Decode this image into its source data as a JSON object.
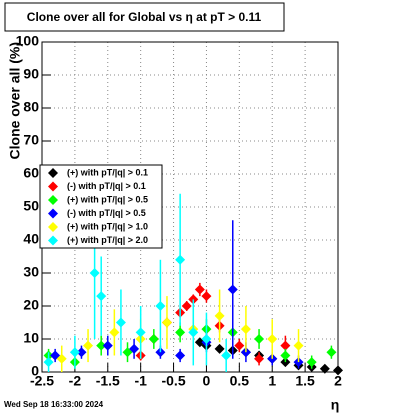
{
  "chart_data": {
    "type": "scatter",
    "title": "Clone  over all for Global vs   η at pT > 0.11",
    "x_label": "η",
    "y_label": "Clone  over all (%)",
    "footer": "Wed Sep 18 16:33:00 2024",
    "xlim": [
      -2.5,
      2
    ],
    "ylim": [
      0,
      100
    ],
    "xticks": [
      -2.5,
      -2,
      -1.5,
      -1,
      -0.5,
      0,
      0.5,
      1,
      1.5,
      2
    ],
    "yticks": [
      0,
      10,
      20,
      30,
      40,
      50,
      60,
      70,
      80,
      90,
      100
    ],
    "grid": true,
    "legend_position": "left",
    "series": [
      {
        "name": "(+) with pT/|q| > 0.1",
        "color": "#000000",
        "x": [
          -0.1,
          0.0,
          0.2,
          0.4,
          0.6,
          0.8,
          1.0,
          1.2,
          1.4,
          1.6,
          1.8,
          2.0
        ],
        "values": [
          9,
          8,
          7,
          6.5,
          6,
          5,
          4,
          3,
          2,
          1.5,
          1,
          0.5
        ],
        "errors": [
          0.6,
          0.6,
          0.5,
          0.5,
          0.5,
          0.5,
          0.5,
          0.4,
          0.4,
          0.3,
          0.3,
          0.3
        ]
      },
      {
        "name": "(-) with pT/|q| > 0.1",
        "color": "#ff0000",
        "x": [
          -1.0,
          -0.8,
          -0.6,
          -0.4,
          -0.3,
          -0.2,
          -0.1,
          0.0,
          0.2,
          0.5,
          0.8,
          1.2
        ],
        "values": [
          5,
          10,
          15,
          18,
          20,
          22,
          25,
          23,
          14,
          8,
          4,
          8
        ],
        "errors": [
          1.5,
          1.5,
          1.5,
          1.5,
          1.5,
          1.5,
          2,
          2,
          2,
          2,
          2,
          3
        ]
      },
      {
        "name": "(+) with pT/|q| > 0.5",
        "color": "#00ff00",
        "x": [
          -2.4,
          -2.0,
          -1.6,
          -1.2,
          -0.8,
          -0.4,
          0.0,
          0.4,
          0.8,
          1.2,
          1.6,
          1.9
        ],
        "values": [
          5,
          3,
          8,
          6,
          10,
          12,
          13,
          12,
          10,
          5,
          3,
          6
        ],
        "errors": [
          2,
          2,
          3,
          3,
          3,
          3,
          3,
          3,
          3,
          2,
          2,
          2
        ]
      },
      {
        "name": "(-) with pT/|q| > 0.5",
        "color": "#0000ff",
        "x": [
          -2.3,
          -1.9,
          -1.5,
          -1.1,
          -0.7,
          -0.4,
          0.0,
          0.4,
          0.6,
          1.0,
          1.4
        ],
        "values": [
          5,
          6,
          8,
          7,
          6,
          5,
          9,
          25,
          6,
          4,
          3
        ],
        "errors": [
          2,
          2,
          3,
          3,
          2,
          2,
          3,
          21,
          3,
          2,
          2
        ]
      },
      {
        "name": "(+) with pT/|q| > 1.0",
        "color": "#ffff00",
        "x": [
          -2.2,
          -1.8,
          -1.4,
          -1.0,
          -0.6,
          -0.2,
          0.2,
          0.6,
          1.0,
          1.4
        ],
        "values": [
          4,
          8,
          12,
          10,
          15,
          13,
          17,
          13,
          10,
          8
        ],
        "errors": [
          4,
          5,
          7,
          6,
          8,
          6,
          8,
          7,
          6,
          5
        ]
      },
      {
        "name": "(+) with pT/|q| > 2.0",
        "color": "#00ffff",
        "x": [
          -2.4,
          -2.0,
          -1.7,
          -1.6,
          -1.3,
          -1.0,
          -0.7,
          -0.4,
          -0.2,
          0.0,
          0.3
        ],
        "values": [
          3,
          6,
          30,
          23,
          15,
          12,
          20,
          34,
          12,
          10,
          5
        ],
        "errors": [
          3,
          5,
          20,
          12,
          10,
          8,
          14,
          20,
          10,
          8,
          5
        ]
      }
    ]
  }
}
